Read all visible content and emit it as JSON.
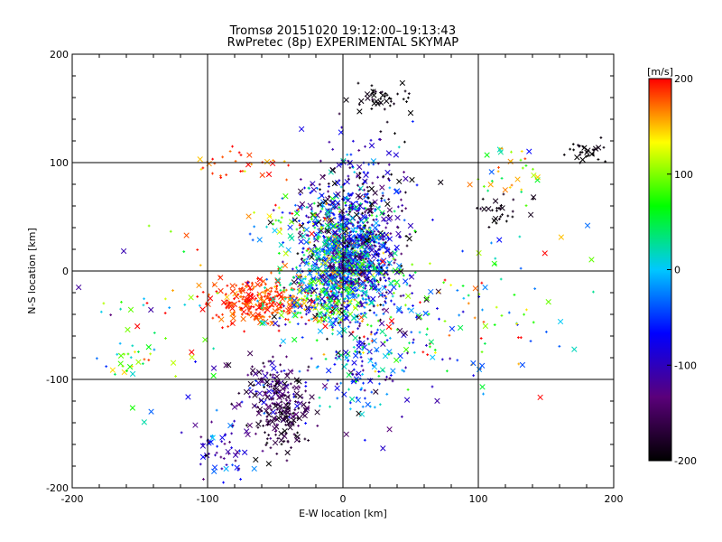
{
  "title": "Tromsø 20151020 19:12:00–19:13:43",
  "subtitle": "RwPretec (8p) EXPERIMENTAL SKYMAP",
  "chart_data": {
    "type": "scatter",
    "xlabel": "E-W location [km]",
    "ylabel": "N-S location [km]",
    "xlim": [
      -200,
      200
    ],
    "ylim": [
      -200,
      200
    ],
    "xticks": [
      -200,
      -100,
      0,
      100,
      200
    ],
    "yticks": [
      -200,
      -100,
      0,
      100,
      200
    ],
    "grid": true,
    "colorbar": {
      "label": "[m/s]",
      "range": [
        -200,
        200
      ],
      "ticks": [
        200,
        100,
        0,
        -100,
        -200
      ],
      "colors": [
        "#000000",
        "#5a007a",
        "#0000ff",
        "#00c8ff",
        "#00ff00",
        "#ffff00",
        "#ff0000"
      ]
    },
    "markers": [
      "plus",
      "cross"
    ],
    "clusters": [
      {
        "name": "central",
        "x": 5,
        "y": 10,
        "sx": 15,
        "sy": 25,
        "n": 1100,
        "v_mean": -40,
        "v_sd": 90
      },
      {
        "name": "north-central",
        "x": 15,
        "y": 55,
        "sx": 20,
        "sy": 30,
        "n": 350,
        "v_mean": -110,
        "v_sd": 60
      },
      {
        "name": "west-red",
        "x": -65,
        "y": -28,
        "sx": 18,
        "sy": 9,
        "n": 260,
        "v_mean": 185,
        "v_sd": 15
      },
      {
        "name": "west-mixed",
        "x": -25,
        "y": -25,
        "sx": 18,
        "sy": 15,
        "n": 250,
        "v_mean": 40,
        "v_sd": 90
      },
      {
        "name": "south-blue",
        "x": -50,
        "y": -115,
        "sx": 14,
        "sy": 18,
        "n": 170,
        "v_mean": -140,
        "v_sd": 40
      },
      {
        "name": "south-purple",
        "x": -45,
        "y": -140,
        "sx": 10,
        "sy": 15,
        "n": 110,
        "v_mean": -170,
        "v_sd": 20
      },
      {
        "name": "southwest-blue",
        "x": -90,
        "y": -170,
        "sx": 12,
        "sy": 20,
        "n": 60,
        "v_mean": -95,
        "v_sd": 40
      },
      {
        "name": "top-black",
        "x": 30,
        "y": 160,
        "sx": 10,
        "sy": 7,
        "n": 45,
        "v_mean": -195,
        "v_sd": 8
      },
      {
        "name": "northeast-black",
        "x": 180,
        "y": 110,
        "sx": 8,
        "sy": 6,
        "n": 30,
        "v_mean": -195,
        "v_sd": 8
      },
      {
        "name": "east-black",
        "x": 115,
        "y": 55,
        "sx": 10,
        "sy": 7,
        "n": 30,
        "v_mean": -190,
        "v_sd": 10
      },
      {
        "name": "southeast-cyan",
        "x": 15,
        "y": -95,
        "sx": 15,
        "sy": 25,
        "n": 130,
        "v_mean": -60,
        "v_sd": 60
      },
      {
        "name": "east-mixed",
        "x": 50,
        "y": -45,
        "sx": 28,
        "sy": 30,
        "n": 130,
        "v_mean": 20,
        "v_sd": 110
      },
      {
        "name": "east-scatter",
        "x": 120,
        "y": -40,
        "sx": 30,
        "sy": 45,
        "n": 55,
        "v_mean": 60,
        "v_sd": 110
      },
      {
        "name": "west-scatter",
        "x": -130,
        "y": -60,
        "sx": 35,
        "sy": 45,
        "n": 55,
        "v_mean": 40,
        "v_sd": 100
      },
      {
        "name": "northwest-red",
        "x": -80,
        "y": 100,
        "sx": 18,
        "sy": 8,
        "n": 30,
        "v_mean": 180,
        "v_sd": 25
      },
      {
        "name": "northeast-mixed",
        "x": 125,
        "y": 90,
        "sx": 15,
        "sy": 15,
        "n": 35,
        "v_mean": 120,
        "v_sd": 70
      },
      {
        "name": "far-west-yellow",
        "x": -155,
        "y": -85,
        "sx": 10,
        "sy": 8,
        "n": 20,
        "v_mean": 80,
        "v_sd": 60
      },
      {
        "name": "mid-north-mixed",
        "x": -30,
        "y": 40,
        "sx": 20,
        "sy": 20,
        "n": 110,
        "v_mean": 30,
        "v_sd": 100
      }
    ]
  }
}
